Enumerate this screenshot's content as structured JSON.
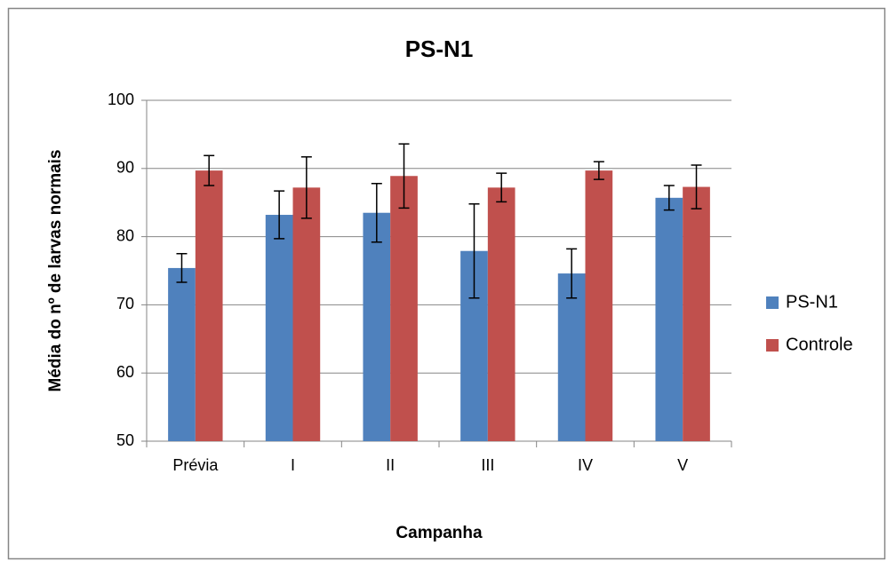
{
  "chart_data": {
    "type": "bar",
    "title": "PS-N1",
    "x_label": "Campanha",
    "y_label": "Média do nº de larvas normais",
    "categories": [
      "Prévia",
      "I",
      "II",
      "III",
      "IV",
      "V"
    ],
    "series": [
      {
        "name": "PS-N1",
        "color": "#4f81bd",
        "values": [
          75.4,
          83.2,
          83.5,
          77.9,
          74.6,
          85.7
        ],
        "errors": [
          2.1,
          3.5,
          4.3,
          6.9,
          3.6,
          1.8
        ]
      },
      {
        "name": "Controle",
        "color": "#c0504d",
        "values": [
          89.7,
          87.2,
          88.9,
          87.2,
          89.7,
          87.3
        ],
        "errors": [
          2.2,
          4.5,
          4.7,
          2.1,
          1.3,
          3.2
        ]
      }
    ],
    "ylim": [
      50,
      100
    ],
    "yticks": [
      50,
      60,
      70,
      80,
      90,
      100
    ],
    "grid": true,
    "legend": "right"
  }
}
